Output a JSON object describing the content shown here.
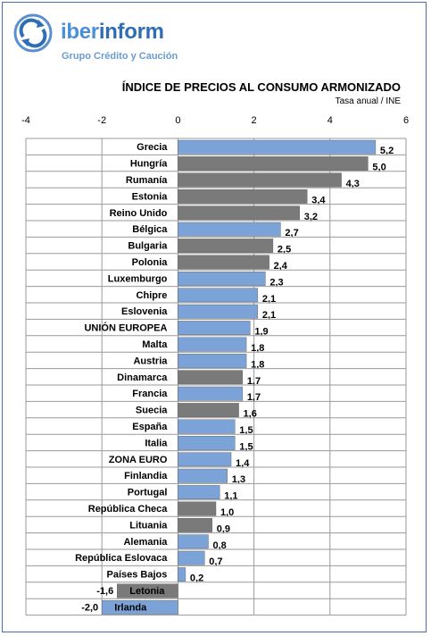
{
  "header": {
    "brand_part1": "iber",
    "brand_part2": "inform",
    "tagline": "Grupo Crédito y Caución"
  },
  "chart_data": {
    "type": "bar",
    "orientation": "horizontal",
    "title": "ÍNDICE DE PRECIOS AL CONSUMO ARMONIZADO",
    "subtitle": "Tasa anual / INE",
    "xlim": [
      -4,
      6
    ],
    "xticks": [
      -4,
      -2,
      0,
      2,
      4,
      6
    ],
    "grid": true,
    "colors": {
      "blue": "#7ba3d8",
      "gray": "#7a7a7a"
    },
    "bars": [
      {
        "label": "Grecia",
        "value": 5.2,
        "display": "5,2",
        "color": "blue"
      },
      {
        "label": "Hungría",
        "value": 5.0,
        "display": "5,0",
        "color": "gray"
      },
      {
        "label": "Rumanía",
        "value": 4.3,
        "display": "4,3",
        "color": "gray"
      },
      {
        "label": "Estonia",
        "value": 3.4,
        "display": "3,4",
        "color": "gray"
      },
      {
        "label": "Reino Unido",
        "value": 3.2,
        "display": "3,2",
        "color": "gray"
      },
      {
        "label": "Bélgica",
        "value": 2.7,
        "display": "2,7",
        "color": "blue"
      },
      {
        "label": "Bulgaria",
        "value": 2.5,
        "display": "2,5",
        "color": "gray"
      },
      {
        "label": "Polonia",
        "value": 2.4,
        "display": "2,4",
        "color": "gray"
      },
      {
        "label": "Luxemburgo",
        "value": 2.3,
        "display": "2,3",
        "color": "blue"
      },
      {
        "label": "Chipre",
        "value": 2.1,
        "display": "2,1",
        "color": "blue"
      },
      {
        "label": "Eslovenia",
        "value": 2.1,
        "display": "2,1",
        "color": "blue"
      },
      {
        "label": "UNIÓN EUROPEA",
        "value": 1.9,
        "display": "1,9",
        "color": "blue"
      },
      {
        "label": "Malta",
        "value": 1.8,
        "display": "1,8",
        "color": "blue"
      },
      {
        "label": "Austria",
        "value": 1.8,
        "display": "1,8",
        "color": "blue"
      },
      {
        "label": "Dinamarca",
        "value": 1.7,
        "display": "1,7",
        "color": "gray"
      },
      {
        "label": "Francia",
        "value": 1.7,
        "display": "1,7",
        "color": "blue"
      },
      {
        "label": "Suecia",
        "value": 1.6,
        "display": "1,6",
        "color": "gray"
      },
      {
        "label": "España",
        "value": 1.5,
        "display": "1,5",
        "color": "blue"
      },
      {
        "label": "Italia",
        "value": 1.5,
        "display": "1,5",
        "color": "blue"
      },
      {
        "label": "ZONA EURO",
        "value": 1.4,
        "display": "1,4",
        "color": "blue"
      },
      {
        "label": "Finlandia",
        "value": 1.3,
        "display": "1,3",
        "color": "blue"
      },
      {
        "label": "Portugal",
        "value": 1.1,
        "display": "1,1",
        "color": "blue"
      },
      {
        "label": "República Checa",
        "value": 1.0,
        "display": "1,0",
        "color": "gray"
      },
      {
        "label": "Lituania",
        "value": 0.9,
        "display": "0,9",
        "color": "gray"
      },
      {
        "label": "Alemania",
        "value": 0.8,
        "display": "0,8",
        "color": "blue"
      },
      {
        "label": "República Eslovaca",
        "value": 0.7,
        "display": "0,7",
        "color": "blue"
      },
      {
        "label": "Países Bajos",
        "value": 0.2,
        "display": "0,2",
        "color": "blue"
      },
      {
        "label": "Letonia",
        "value": -1.6,
        "display": "-1,6",
        "color": "gray"
      },
      {
        "label": "Irlanda",
        "value": -2.0,
        "display": "-2,0",
        "color": "blue"
      }
    ]
  }
}
